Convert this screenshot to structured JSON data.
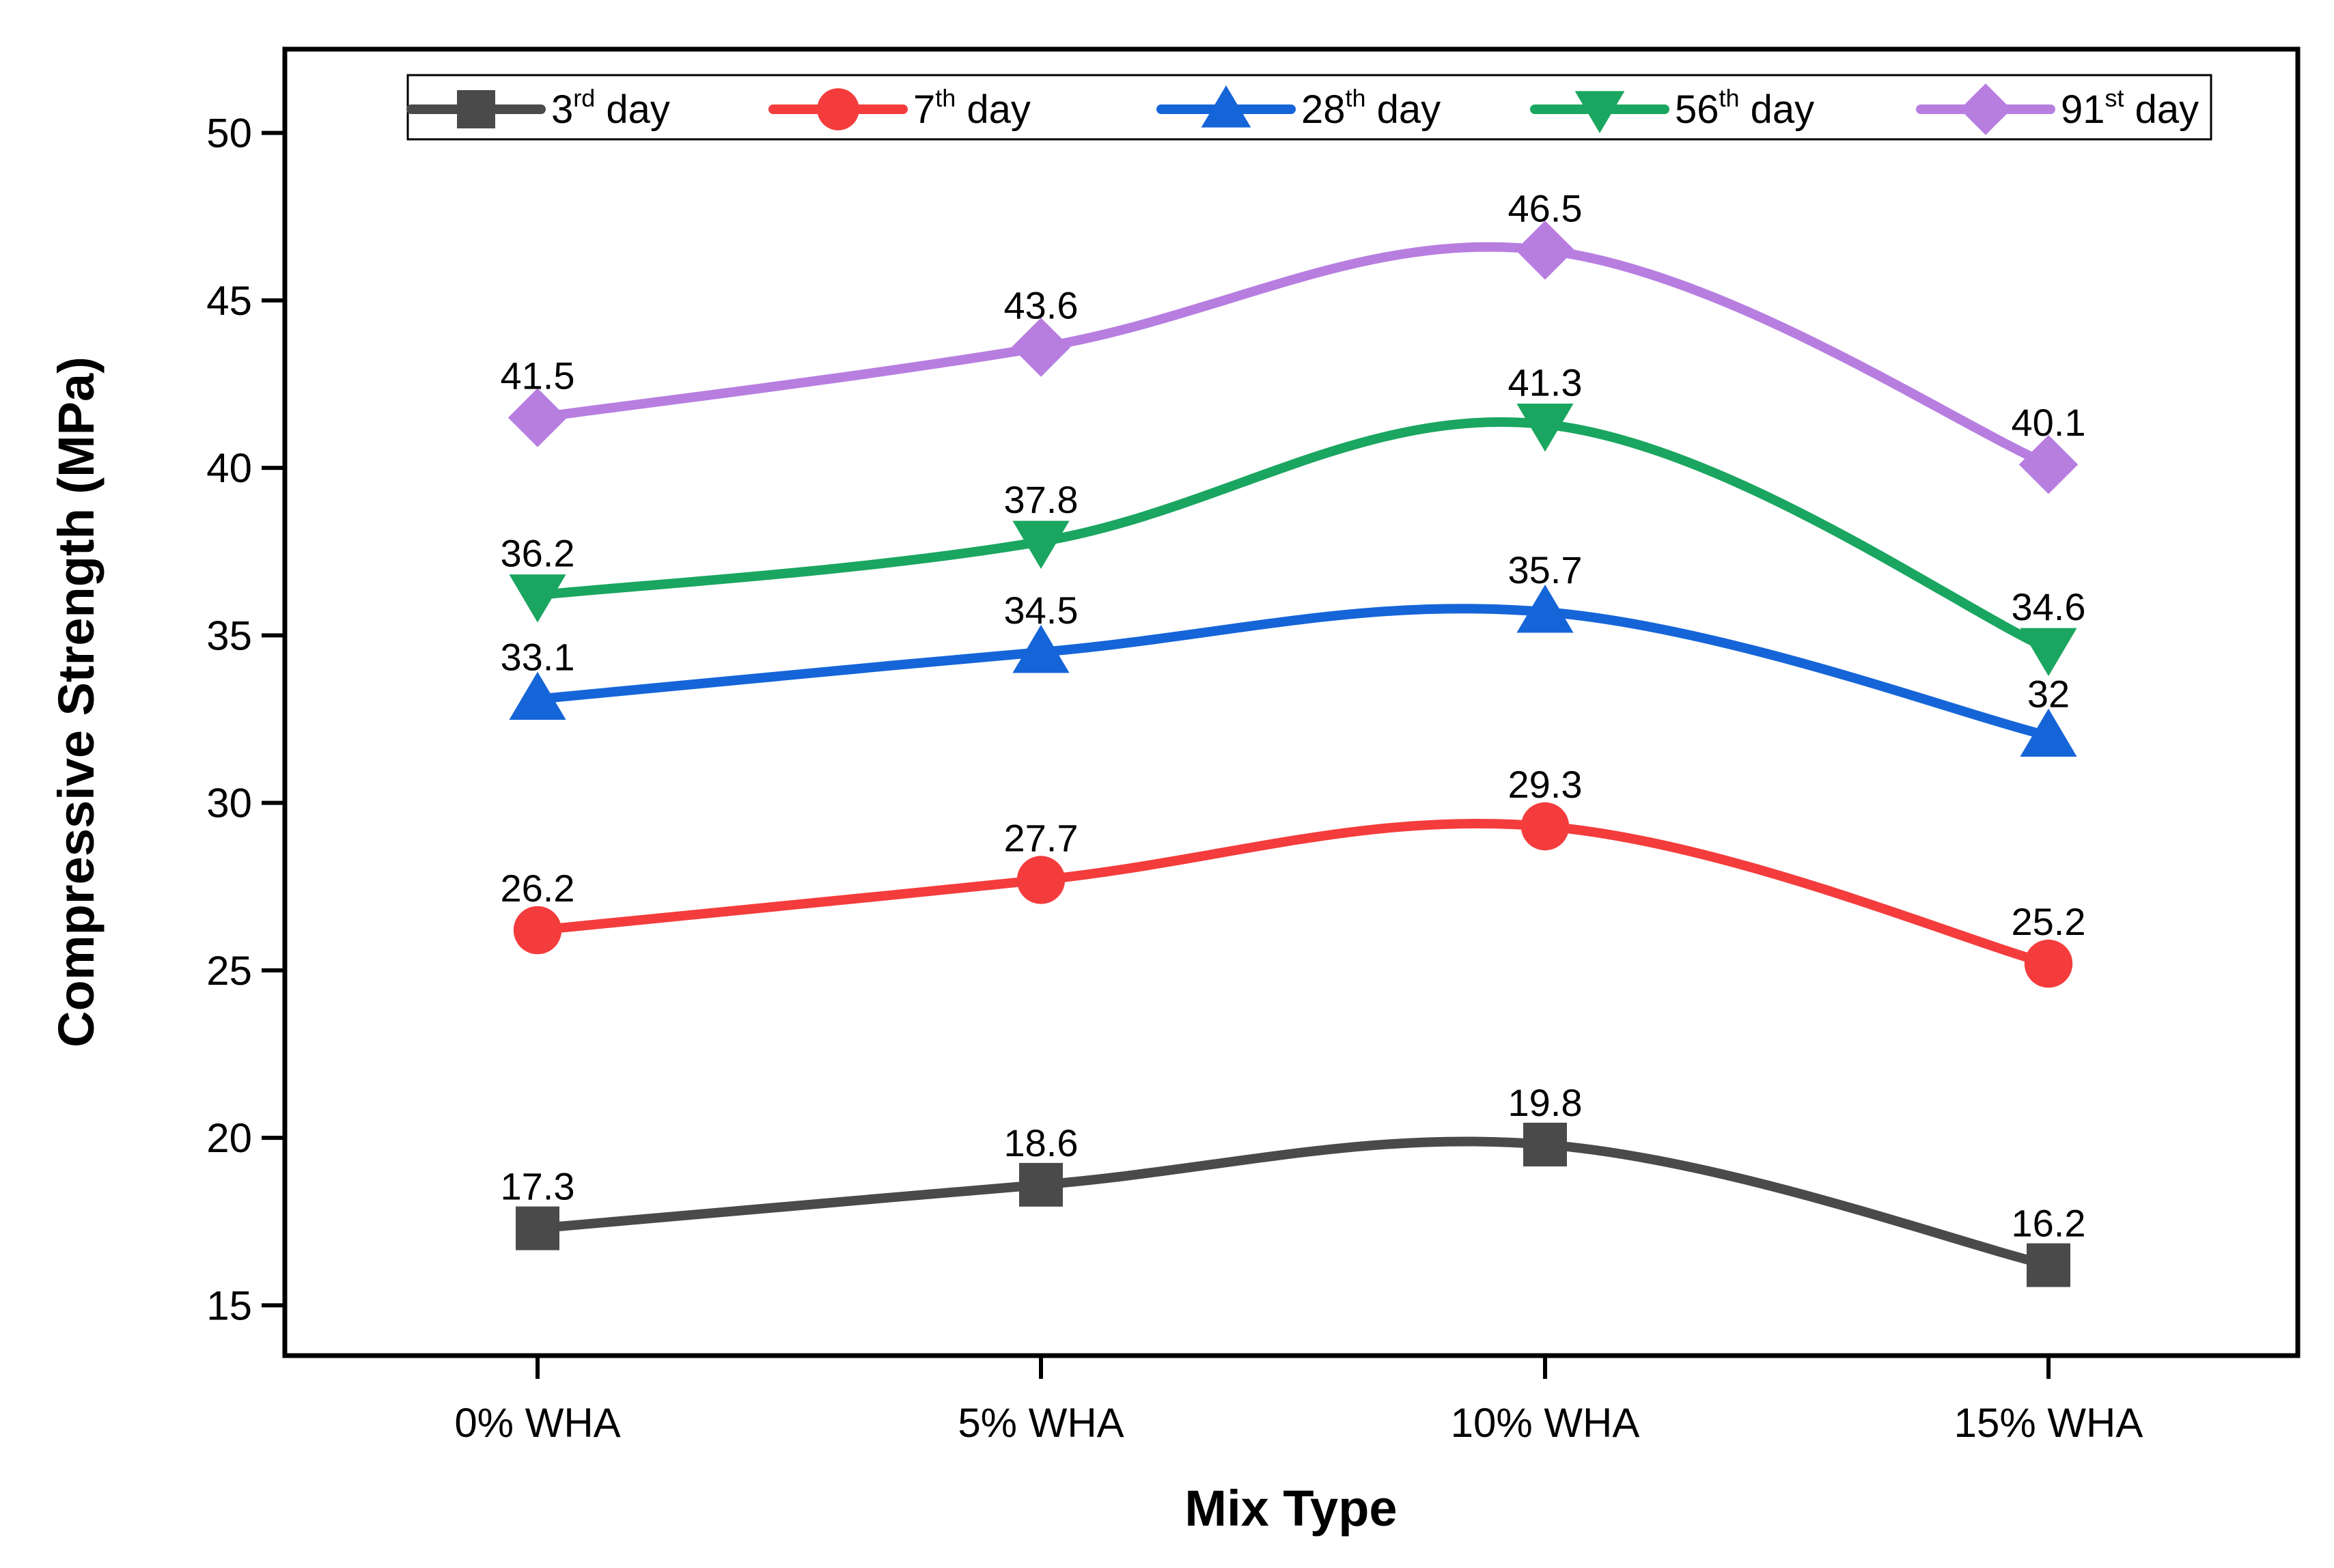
{
  "chart_data": {
    "type": "line",
    "xlabel": "Mix Type",
    "ylabel": "Compressive Strength (MPa)",
    "categories": [
      "0% WHA",
      "5% WHA",
      "10% WHA",
      "15% WHA"
    ],
    "ylim": [
      13.5,
      52.5
    ],
    "yticks": [
      "15",
      "20",
      "25",
      "30",
      "35",
      "40",
      "45",
      "50"
    ],
    "legend_position": "top",
    "series": [
      {
        "name": "3rd day",
        "name_base": "3",
        "name_sup": "rd",
        "name_rest": " day",
        "color": "#4a4a4a",
        "marker": "square",
        "values": [
          17.3,
          18.6,
          19.8,
          16.2
        ],
        "labels": [
          "17.3",
          "18.6",
          "19.8",
          "16.2"
        ]
      },
      {
        "name": "7th day",
        "name_base": "7",
        "name_sup": "th",
        "name_rest": " day",
        "color": "#f43c3c",
        "marker": "circle",
        "values": [
          26.2,
          27.7,
          29.3,
          25.2
        ],
        "labels": [
          "26.2",
          "27.7",
          "29.3",
          "25.2"
        ]
      },
      {
        "name": "28th day",
        "name_base": "28",
        "name_sup": "th",
        "name_rest": " day",
        "color": "#1565d8",
        "marker": "triangle-up",
        "values": [
          33.1,
          34.5,
          35.7,
          32.0
        ],
        "labels": [
          "33.1",
          "34.5",
          "35.7",
          "32"
        ]
      },
      {
        "name": "56th day",
        "name_base": "56",
        "name_sup": "th",
        "name_rest": " day",
        "color": "#1aa660",
        "marker": "triangle-down",
        "values": [
          36.2,
          37.8,
          41.3,
          34.6
        ],
        "labels": [
          "36.2",
          "37.8",
          "41.3",
          "34.6"
        ]
      },
      {
        "name": "91st day",
        "name_base": "91",
        "name_sup": "st",
        "name_rest": " day",
        "color": "#b77ee0",
        "marker": "diamond",
        "values": [
          41.5,
          43.6,
          46.5,
          40.1
        ],
        "labels": [
          "41.5",
          "43.6",
          "46.5",
          "40.1"
        ]
      }
    ]
  }
}
